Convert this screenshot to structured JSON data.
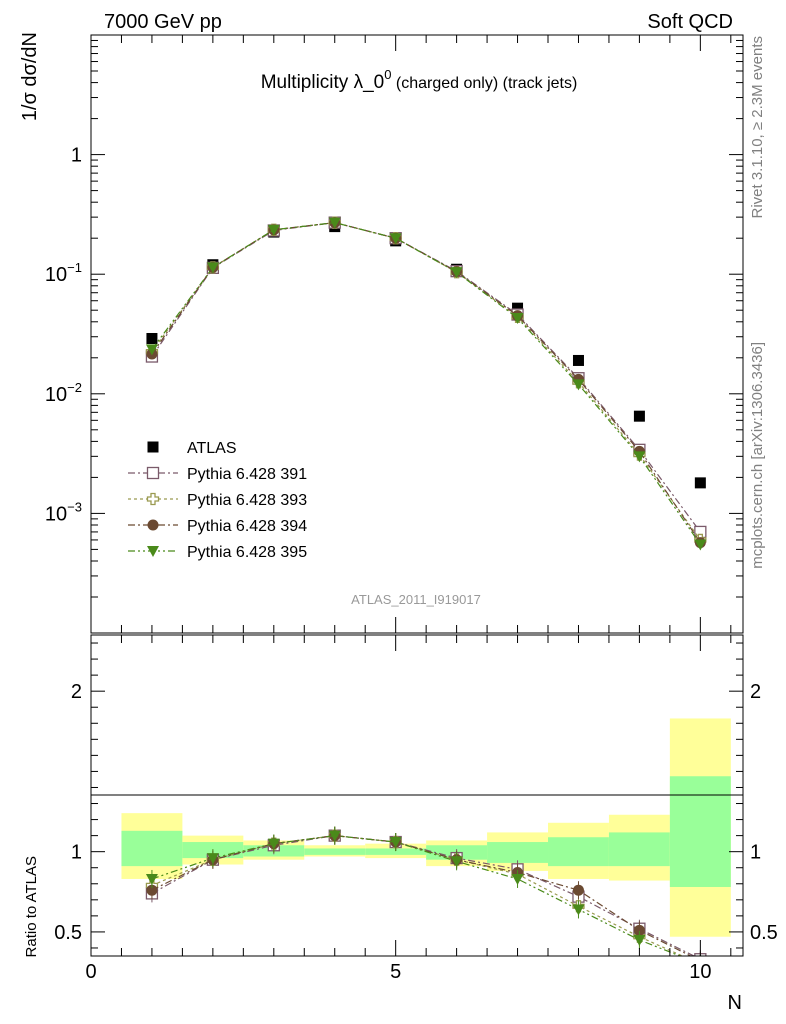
{
  "header": {
    "left": "7000 GeV pp",
    "right": "Soft QCD"
  },
  "side_text": {
    "rivet": "Rivet 3.1.10, ≥ 2.3M events",
    "mcplots": "mcplots.cern.ch [arXiv:1306.3436]"
  },
  "chart_data": [
    {
      "type": "scatter",
      "title": "Multiplicity λ_0⁰ (charged only) (track jets)",
      "title_main": "Multiplicity λ_0",
      "title_sup": "0",
      "title_tail": " (charged only) (track jets)",
      "ylabel": "1/σ dσ/dN",
      "yscale": "log",
      "ylim": [
        0.0001,
        10
      ],
      "xlim": [
        0,
        10.7
      ],
      "yticks": [
        {
          "v": 0.001,
          "base": "10",
          "exp": "−3"
        },
        {
          "v": 0.01,
          "base": "10",
          "exp": "−2"
        },
        {
          "v": 0.1,
          "base": "10",
          "exp": "−1"
        },
        {
          "v": 1,
          "base": "1",
          "exp": ""
        }
      ],
      "legend_position": "center-left",
      "watermark": "ATLAS_2011_I919017",
      "x": [
        1,
        2,
        3,
        4,
        5,
        6,
        7,
        8,
        9,
        10
      ],
      "series": [
        {
          "name": "ATLAS",
          "color": "#000000",
          "marker": "square-filled",
          "values": [
            0.029,
            0.12,
            0.225,
            0.25,
            0.19,
            0.11,
            0.052,
            0.019,
            0.0065,
            0.0018
          ]
        },
        {
          "name": "Pythia 6.428 391",
          "color": "#7a5a6a",
          "marker": "square-open",
          "dash": "7,3,2,3",
          "values": [
            0.0205,
            0.113,
            0.232,
            0.27,
            0.2,
            0.106,
            0.046,
            0.0135,
            0.0034,
            0.0007
          ]
        },
        {
          "name": "Pythia 6.428 393",
          "color": "#9a9a50",
          "marker": "cross-open",
          "dash": "3,3",
          "values": [
            0.0225,
            0.114,
            0.235,
            0.27,
            0.2,
            0.104,
            0.044,
            0.0125,
            0.0031,
            0.0006
          ]
        },
        {
          "name": "Pythia 6.428 394",
          "color": "#6b4a32",
          "marker": "circle-filled",
          "dash": "7,3,2,3",
          "values": [
            0.0215,
            0.114,
            0.235,
            0.27,
            0.2,
            0.105,
            0.045,
            0.0132,
            0.0033,
            0.00057
          ]
        },
        {
          "name": "Pythia 6.428 395",
          "color": "#4a8a1a",
          "marker": "triangle-down-filled",
          "dash": "7,3,2,3,2,3",
          "values": [
            0.0235,
            0.114,
            0.235,
            0.27,
            0.2,
            0.104,
            0.043,
            0.012,
            0.003,
            0.00055
          ]
        }
      ]
    },
    {
      "type": "scatter",
      "ylabel": "Ratio to ATLAS",
      "xlabel": "N",
      "ylim": [
        0.35,
        2.35
      ],
      "xlim": [
        0,
        10.7
      ],
      "yticks": [
        0.5,
        1,
        2
      ],
      "xticks": [
        0,
        5,
        10
      ],
      "x": [
        1,
        2,
        3,
        4,
        5,
        6,
        7,
        8,
        9,
        10
      ],
      "bands": {
        "bins": [
          [
            0.5,
            1.5
          ],
          [
            1.5,
            2.5
          ],
          [
            2.5,
            3.5
          ],
          [
            3.5,
            4.5
          ],
          [
            4.5,
            5.5
          ],
          [
            5.5,
            6.5
          ],
          [
            6.5,
            7.5
          ],
          [
            7.5,
            8.5
          ],
          [
            8.5,
            9.5
          ],
          [
            9.5,
            10.5
          ]
        ],
        "yellow": [
          [
            0.83,
            1.24
          ],
          [
            0.92,
            1.1
          ],
          [
            0.95,
            1.07
          ],
          [
            0.97,
            1.04
          ],
          [
            0.96,
            1.05
          ],
          [
            0.91,
            1.07
          ],
          [
            0.88,
            1.12
          ],
          [
            0.83,
            1.18
          ],
          [
            0.82,
            1.23
          ],
          [
            0.47,
            1.83
          ]
        ],
        "green": [
          [
            0.91,
            1.13
          ],
          [
            0.96,
            1.06
          ],
          [
            0.97,
            1.04
          ],
          [
            0.98,
            1.02
          ],
          [
            0.98,
            1.02
          ],
          [
            0.95,
            1.04
          ],
          [
            0.93,
            1.06
          ],
          [
            0.91,
            1.09
          ],
          [
            0.91,
            1.12
          ],
          [
            0.78,
            1.47
          ]
        ],
        "yellow_color": "#ffff99",
        "green_color": "#99ff99"
      },
      "series": [
        {
          "name": "Pythia 6.428 391",
          "color": "#7a5a6a",
          "marker": "square-open",
          "dash": "7,3,2,3",
          "values": [
            0.74,
            0.95,
            1.04,
            1.1,
            1.06,
            0.96,
            0.89,
            0.72,
            0.52,
            0.33
          ]
        },
        {
          "name": "Pythia 6.428 393",
          "color": "#9a9a50",
          "marker": "cross-open",
          "dash": "3,3",
          "values": [
            0.79,
            0.95,
            1.05,
            1.1,
            1.06,
            0.95,
            0.86,
            0.66,
            0.47,
            0.3
          ]
        },
        {
          "name": "Pythia 6.428 394",
          "color": "#6b4a32",
          "marker": "circle-filled",
          "dash": "7,3,2,3",
          "values": [
            0.76,
            0.95,
            1.05,
            1.1,
            1.06,
            0.95,
            0.87,
            0.76,
            0.51,
            0.32
          ]
        },
        {
          "name": "Pythia 6.428 395",
          "color": "#4a8a1a",
          "marker": "triangle-down-filled",
          "dash": "7,3,2,3,2,3",
          "values": [
            0.83,
            0.96,
            1.05,
            1.1,
            1.06,
            0.94,
            0.83,
            0.64,
            0.45,
            0.3
          ]
        }
      ]
    }
  ]
}
